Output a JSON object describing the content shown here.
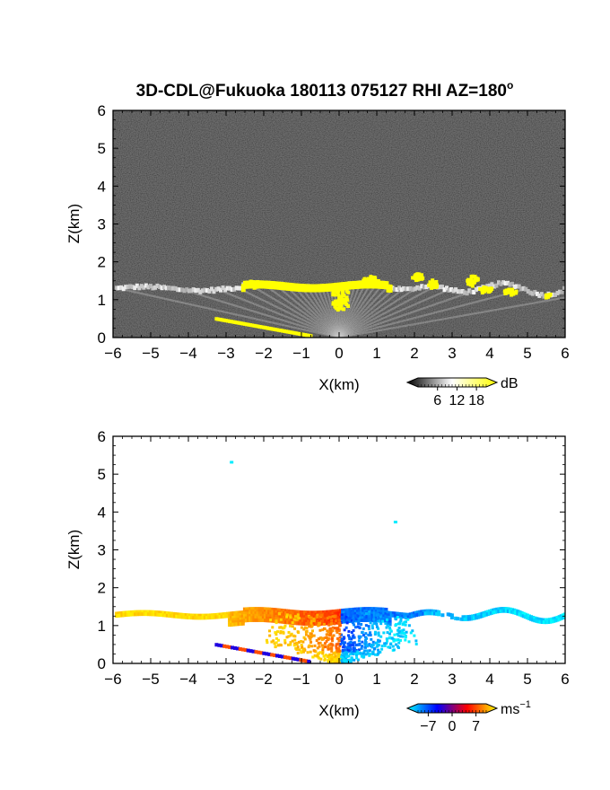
{
  "chart_data": [
    {
      "id": "reflectivity",
      "type": "heatmap",
      "title": "3D-CDL@Fukuoka 180113 075127 RHI AZ=180",
      "title_superscript": "o",
      "xlabel": "X(km)",
      "ylabel": "Z(km)",
      "xlim": [
        -6,
        6
      ],
      "ylim": [
        0,
        6
      ],
      "x_ticks": [
        "-6",
        "-5",
        "-4",
        "-3",
        "-2",
        "-1",
        "0",
        "1",
        "2",
        "3",
        "4",
        "5",
        "6"
      ],
      "y_ticks": [
        "0",
        "1",
        "2",
        "3",
        "4",
        "5",
        "6"
      ],
      "colorbar": {
        "label": "dB",
        "ticks": [
          "6",
          "12",
          "18"
        ],
        "tick_values": [
          6,
          12,
          18
        ],
        "range": [
          0,
          21
        ],
        "colors": [
          "#000000",
          "#ffffff",
          "#ffff00"
        ]
      },
      "background": "#2a2a2a",
      "features": [
        {
          "name": "cloud-base layer",
          "x_range": [
            -5.9,
            6
          ],
          "z": 1.3,
          "value_db": 18
        },
        {
          "name": "ground clutter",
          "x_range": [
            -3.3,
            -0.8
          ],
          "z_range": [
            0.5,
            0.05
          ],
          "value_db": 18
        }
      ]
    },
    {
      "id": "doppler-velocity",
      "type": "heatmap",
      "xlabel": "X(km)",
      "ylabel": "Z(km)",
      "xlim": [
        -6,
        6
      ],
      "ylim": [
        0,
        6
      ],
      "x_ticks": [
        "-6",
        "-5",
        "-4",
        "-3",
        "-2",
        "-1",
        "0",
        "1",
        "2",
        "3",
        "4",
        "5",
        "6"
      ],
      "y_ticks": [
        "0",
        "1",
        "2",
        "3",
        "4",
        "5",
        "6"
      ],
      "colorbar": {
        "label": "ms",
        "label_superscript": "-1",
        "ticks": [
          "-7",
          "0",
          "7"
        ],
        "tick_values": [
          -7,
          0,
          7
        ],
        "range": [
          -10,
          10
        ],
        "colors": [
          "#00ffff",
          "#0000ff",
          "#ff0000",
          "#ffff00"
        ]
      },
      "background": "#ffffff",
      "features": [
        {
          "name": "approaching echoes (west)",
          "x_range": [
            -5.9,
            0
          ],
          "z": 1.3,
          "velocity_ms": 7
        },
        {
          "name": "receding echoes (east)",
          "x_range": [
            0,
            6
          ],
          "z": 1.4,
          "velocity_ms": -7
        },
        {
          "name": "isolated points",
          "points": [
            [
              -2.9,
              5.35
            ],
            [
              1.45,
              3.77
            ]
          ],
          "velocity_ms": -9
        }
      ]
    }
  ]
}
